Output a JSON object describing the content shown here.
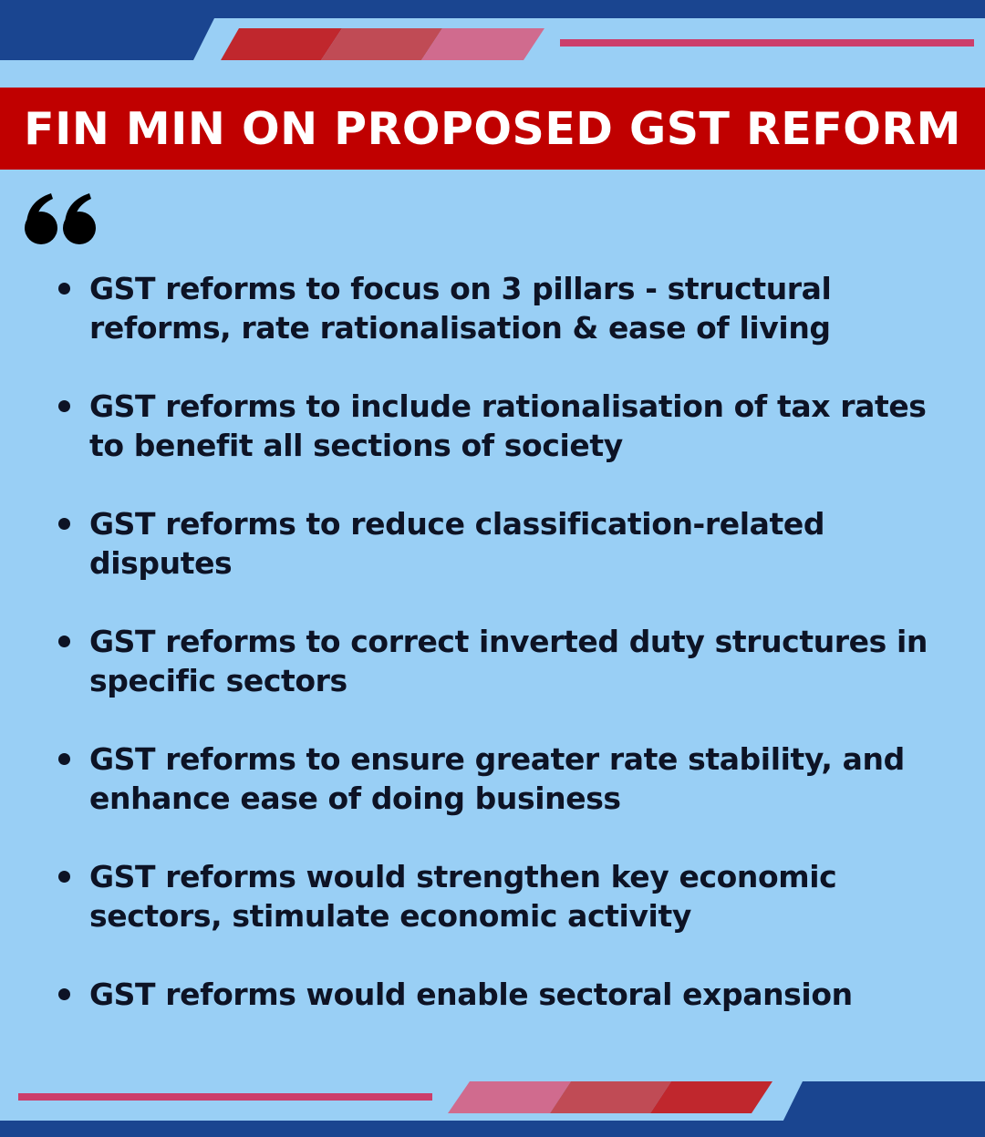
{
  "header": {
    "title": "FIN MIN ON PROPOSED GST REFORM"
  },
  "quote_icon": "left-double-quote-icon",
  "points": [
    {
      "text": "GST reforms to focus on 3 pillars - structural reforms, rate rationalisation & ease of living"
    },
    {
      "text": "GST reforms to include rationalisation of tax rates to benefit all sections of society"
    },
    {
      "text": "GST reforms to reduce classification-related disputes"
    },
    {
      "text": "GST reforms to correct inverted duty structures in specific sectors"
    },
    {
      "text": "GST reforms to ensure greater rate stability, and enhance ease of doing business"
    },
    {
      "text": "GST reforms would strengthen key economic sectors, stimulate economic activity"
    },
    {
      "text": "GST reforms would enable sectoral expansion"
    }
  ],
  "colors": {
    "background": "#99cff5",
    "banner": "#c00000",
    "navy": "#1a4590",
    "red_1": "#c0272d",
    "red_2": "#c04b55",
    "pink": "#d06b8e",
    "line_pink": "#cc3e6b",
    "text": "#0d1325"
  }
}
